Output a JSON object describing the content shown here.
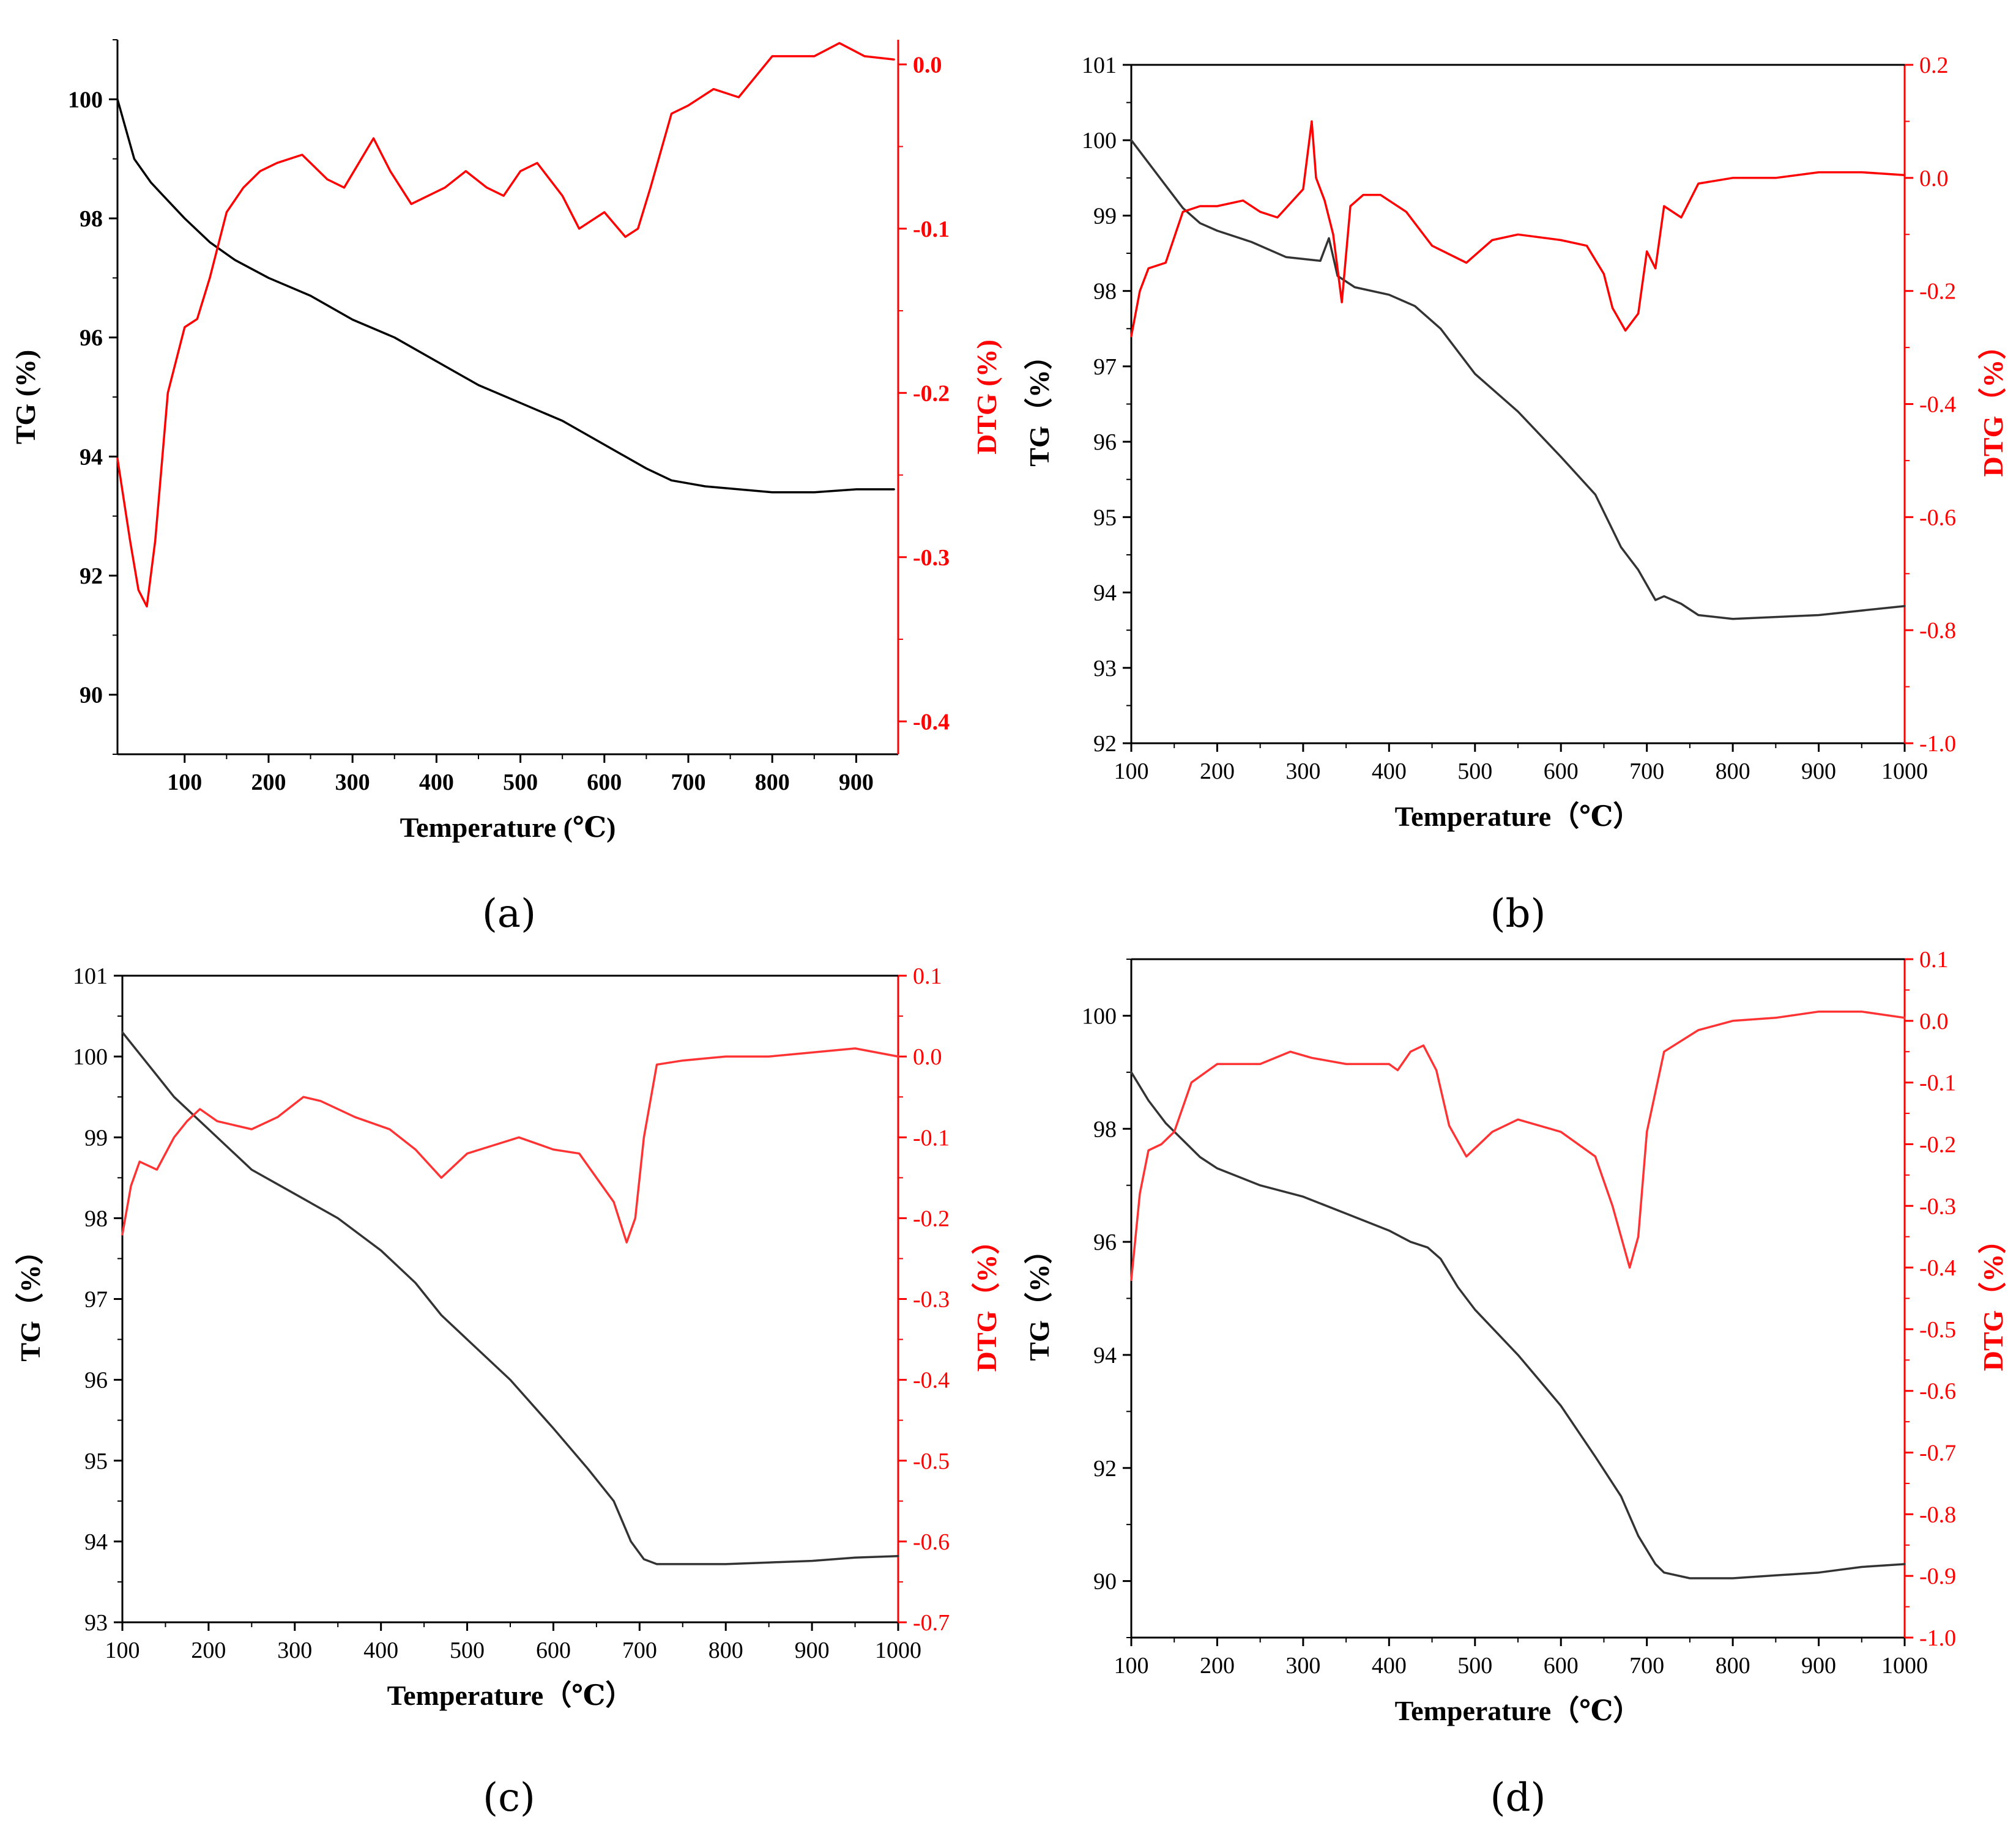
{
  "chart_data": [
    {
      "panel_label": "(a)",
      "type": "line",
      "xlabel": "Temperature (℃)",
      "ylabel_left": "TG (%)",
      "ylabel_right": "DTG (%)",
      "xlim": [
        20,
        950
      ],
      "ylim_left": [
        89,
        101
      ],
      "ylim_right": [
        -0.42,
        0.015
      ],
      "xticks": [
        100,
        200,
        300,
        400,
        500,
        600,
        700,
        800,
        900
      ],
      "xtick_labels": [
        "100",
        "200",
        "300",
        "400",
        "500",
        "600",
        "700",
        "800",
        "900"
      ],
      "yticks_left": [
        90,
        92,
        94,
        96,
        98,
        100
      ],
      "ytick_labels_left": [
        "90",
        "92",
        "94",
        "96",
        "98",
        "100"
      ],
      "yticks_right": [
        -0.4,
        -0.3,
        -0.2,
        -0.1,
        0.0
      ],
      "ytick_labels_right": [
        "-0.4",
        "-0.3",
        "-0.2",
        "-0.1",
        "0.0"
      ],
      "series": [
        {
          "name": "TG",
          "axis": "left",
          "color": "#000000",
          "x": [
            20,
            40,
            60,
            80,
            100,
            130,
            160,
            200,
            250,
            300,
            350,
            400,
            450,
            500,
            550,
            600,
            650,
            680,
            720,
            800,
            850,
            900,
            945
          ],
          "y": [
            100.0,
            99.0,
            98.6,
            98.3,
            98.0,
            97.6,
            97.3,
            97.0,
            96.7,
            96.3,
            96.0,
            95.6,
            95.2,
            94.9,
            94.6,
            94.2,
            93.8,
            93.6,
            93.5,
            93.4,
            93.4,
            93.45,
            93.45
          ]
        },
        {
          "name": "DTG",
          "axis": "right",
          "color": "#ff0000",
          "x": [
            20,
            35,
            45,
            55,
            65,
            80,
            100,
            115,
            130,
            150,
            170,
            190,
            210,
            240,
            270,
            290,
            325,
            345,
            370,
            390,
            410,
            435,
            460,
            480,
            500,
            520,
            550,
            570,
            600,
            625,
            640,
            655,
            680,
            700,
            730,
            760,
            800,
            850,
            880,
            910,
            945
          ],
          "y": [
            -0.24,
            -0.29,
            -0.32,
            -0.33,
            -0.29,
            -0.2,
            -0.16,
            -0.155,
            -0.13,
            -0.09,
            -0.075,
            -0.065,
            -0.06,
            -0.055,
            -0.07,
            -0.075,
            -0.045,
            -0.065,
            -0.085,
            -0.08,
            -0.075,
            -0.065,
            -0.075,
            -0.08,
            -0.065,
            -0.06,
            -0.08,
            -0.1,
            -0.09,
            -0.105,
            -0.1,
            -0.075,
            -0.03,
            -0.025,
            -0.015,
            -0.02,
            0.005,
            0.005,
            0.013,
            0.005,
            0.003
          ]
        }
      ]
    },
    {
      "panel_label": "(b)",
      "type": "line",
      "xlabel": "Temperature（℃）",
      "ylabel_left": "TG（%）",
      "ylabel_right": "DTG（%）",
      "xlim": [
        100,
        1000
      ],
      "ylim_left": [
        92,
        101
      ],
      "ylim_right": [
        -1.0,
        0.2
      ],
      "xticks": [
        100,
        200,
        300,
        400,
        500,
        600,
        700,
        800,
        900,
        1000
      ],
      "xtick_labels": [
        "100",
        "200",
        "300",
        "400",
        "500",
        "600",
        "700",
        "800",
        "900",
        "1000"
      ],
      "yticks_left": [
        92,
        93,
        94,
        95,
        96,
        97,
        98,
        99,
        100,
        101
      ],
      "ytick_labels_left": [
        "92",
        "93",
        "94",
        "95",
        "96",
        "97",
        "98",
        "99",
        "100",
        "101"
      ],
      "yticks_right": [
        -1.0,
        -0.8,
        -0.6,
        -0.4,
        -0.2,
        0.0,
        0.2
      ],
      "ytick_labels_right": [
        "-1.0",
        "-0.8",
        "-0.6",
        "-0.4",
        "-0.2",
        "0.0",
        "0.2"
      ],
      "series": [
        {
          "name": "TG",
          "axis": "left",
          "color": "#333333",
          "x": [
            100,
            120,
            140,
            160,
            180,
            200,
            240,
            280,
            320,
            330,
            340,
            360,
            400,
            430,
            460,
            500,
            550,
            600,
            640,
            670,
            690,
            710,
            720,
            740,
            760,
            800,
            900,
            1000
          ],
          "y": [
            100.0,
            99.7,
            99.4,
            99.1,
            98.9,
            98.8,
            98.65,
            98.45,
            98.4,
            98.7,
            98.2,
            98.05,
            97.95,
            97.8,
            97.5,
            96.9,
            96.4,
            95.8,
            95.3,
            94.6,
            94.3,
            93.9,
            93.95,
            93.85,
            93.7,
            93.65,
            93.7,
            93.82
          ]
        },
        {
          "name": "DTG",
          "axis": "right",
          "color": "#ff0000",
          "x": [
            100,
            110,
            120,
            140,
            160,
            180,
            200,
            230,
            250,
            270,
            300,
            310,
            315,
            325,
            335,
            345,
            355,
            370,
            390,
            420,
            450,
            490,
            520,
            550,
            600,
            630,
            650,
            660,
            675,
            690,
            700,
            710,
            720,
            740,
            760,
            800,
            850,
            900,
            950,
            1000
          ],
          "y": [
            -0.28,
            -0.2,
            -0.16,
            -0.15,
            -0.06,
            -0.05,
            -0.05,
            -0.04,
            -0.06,
            -0.07,
            -0.02,
            0.1,
            0.0,
            -0.04,
            -0.1,
            -0.22,
            -0.05,
            -0.03,
            -0.03,
            -0.06,
            -0.12,
            -0.15,
            -0.11,
            -0.1,
            -0.11,
            -0.12,
            -0.17,
            -0.23,
            -0.27,
            -0.24,
            -0.13,
            -0.16,
            -0.05,
            -0.07,
            -0.01,
            0.0,
            0.0,
            0.01,
            0.01,
            0.005
          ]
        }
      ]
    },
    {
      "panel_label": "(c)",
      "type": "line",
      "xlabel": "Temperature（℃）",
      "ylabel_left": "TG（%）",
      "ylabel_right": "DTG（%）",
      "xlim": [
        100,
        1000
      ],
      "ylim_left": [
        93,
        101
      ],
      "ylim_right": [
        -0.7,
        0.1
      ],
      "xticks": [
        100,
        200,
        300,
        400,
        500,
        600,
        700,
        800,
        900,
        1000
      ],
      "xtick_labels": [
        "100",
        "200",
        "300",
        "400",
        "500",
        "600",
        "700",
        "800",
        "900",
        "1000"
      ],
      "yticks_left": [
        93,
        94,
        95,
        96,
        97,
        98,
        99,
        100,
        101
      ],
      "ytick_labels_left": [
        "93",
        "94",
        "95",
        "96",
        "97",
        "98",
        "99",
        "100",
        "101"
      ],
      "yticks_right": [
        -0.7,
        -0.6,
        -0.5,
        -0.4,
        -0.3,
        -0.2,
        -0.1,
        0.0,
        0.1
      ],
      "ytick_labels_right": [
        "-0.7",
        "-0.6",
        "-0.5",
        "-0.4",
        "-0.3",
        "-0.2",
        "-0.1",
        "0.0",
        "0.1"
      ],
      "series": [
        {
          "name": "TG",
          "axis": "left",
          "color": "#333333",
          "x": [
            100,
            130,
            160,
            200,
            250,
            300,
            350,
            400,
            440,
            470,
            500,
            550,
            600,
            640,
            670,
            690,
            705,
            720,
            760,
            800,
            850,
            900,
            950,
            1000
          ],
          "y": [
            100.3,
            99.9,
            99.5,
            99.1,
            98.6,
            98.3,
            98.0,
            97.6,
            97.2,
            96.8,
            96.5,
            96.0,
            95.4,
            94.9,
            94.5,
            94.0,
            93.78,
            93.72,
            93.72,
            93.72,
            93.74,
            93.76,
            93.8,
            93.82
          ]
        },
        {
          "name": "DTG",
          "axis": "right",
          "color": "#ff3333",
          "x": [
            100,
            110,
            120,
            140,
            160,
            175,
            190,
            210,
            250,
            280,
            310,
            330,
            370,
            410,
            440,
            470,
            500,
            530,
            560,
            600,
            630,
            650,
            670,
            685,
            695,
            705,
            720,
            750,
            800,
            850,
            900,
            950,
            1000
          ],
          "y": [
            -0.22,
            -0.16,
            -0.13,
            -0.14,
            -0.1,
            -0.08,
            -0.065,
            -0.08,
            -0.09,
            -0.075,
            -0.05,
            -0.055,
            -0.075,
            -0.09,
            -0.115,
            -0.15,
            -0.12,
            -0.11,
            -0.1,
            -0.115,
            -0.12,
            -0.15,
            -0.18,
            -0.23,
            -0.2,
            -0.1,
            -0.01,
            -0.005,
            0.0,
            0.0,
            0.005,
            0.01,
            0.0
          ]
        }
      ]
    },
    {
      "panel_label": "(d)",
      "type": "line",
      "xlabel": "Temperature（℃）",
      "ylabel_left": "TG（%）",
      "ylabel_right": "DTG（%）",
      "xlim": [
        100,
        1000
      ],
      "ylim_left": [
        89,
        101
      ],
      "ylim_right": [
        -1.0,
        0.1
      ],
      "xticks": [
        100,
        200,
        300,
        400,
        500,
        600,
        700,
        800,
        900,
        1000
      ],
      "xtick_labels": [
        "100",
        "200",
        "300",
        "400",
        "500",
        "600",
        "700",
        "800",
        "900",
        "1000"
      ],
      "yticks_left": [
        90,
        92,
        94,
        96,
        98,
        100
      ],
      "ytick_labels_left": [
        "90",
        "92",
        "94",
        "96",
        "98",
        "100"
      ],
      "yticks_right": [
        -1.0,
        -0.9,
        -0.8,
        -0.7,
        -0.6,
        -0.5,
        -0.4,
        -0.3,
        -0.2,
        -0.1,
        0.0,
        0.1
      ],
      "ytick_labels_right": [
        "-1.0",
        "-0.9",
        "-0.8",
        "-0.7",
        "-0.6",
        "-0.5",
        "-0.4",
        "-0.3",
        "-0.2",
        "-0.1",
        "0.0",
        "0.1"
      ],
      "series": [
        {
          "name": "TG",
          "axis": "left",
          "color": "#333333",
          "x": [
            100,
            120,
            140,
            160,
            180,
            200,
            250,
            300,
            350,
            400,
            425,
            445,
            460,
            480,
            500,
            550,
            600,
            640,
            670,
            690,
            710,
            720,
            750,
            800,
            850,
            900,
            950,
            1000
          ],
          "y": [
            99.0,
            98.5,
            98.1,
            97.8,
            97.5,
            97.3,
            97.0,
            96.8,
            96.5,
            96.2,
            96.0,
            95.9,
            95.7,
            95.2,
            94.8,
            94.0,
            93.1,
            92.2,
            91.5,
            90.8,
            90.3,
            90.15,
            90.05,
            90.05,
            90.1,
            90.15,
            90.25,
            90.3
          ]
        },
        {
          "name": "DTG",
          "axis": "right",
          "color": "#ff3333",
          "x": [
            100,
            110,
            120,
            135,
            150,
            170,
            200,
            250,
            285,
            310,
            350,
            400,
            410,
            425,
            440,
            455,
            470,
            490,
            520,
            550,
            600,
            640,
            660,
            680,
            690,
            700,
            720,
            760,
            800,
            850,
            900,
            950,
            1000
          ],
          "y": [
            -0.42,
            -0.28,
            -0.21,
            -0.2,
            -0.18,
            -0.1,
            -0.07,
            -0.07,
            -0.05,
            -0.06,
            -0.07,
            -0.07,
            -0.08,
            -0.05,
            -0.04,
            -0.08,
            -0.17,
            -0.22,
            -0.18,
            -0.16,
            -0.18,
            -0.22,
            -0.3,
            -0.4,
            -0.35,
            -0.18,
            -0.05,
            -0.015,
            0.0,
            0.005,
            0.015,
            0.015,
            0.005
          ]
        }
      ]
    }
  ]
}
